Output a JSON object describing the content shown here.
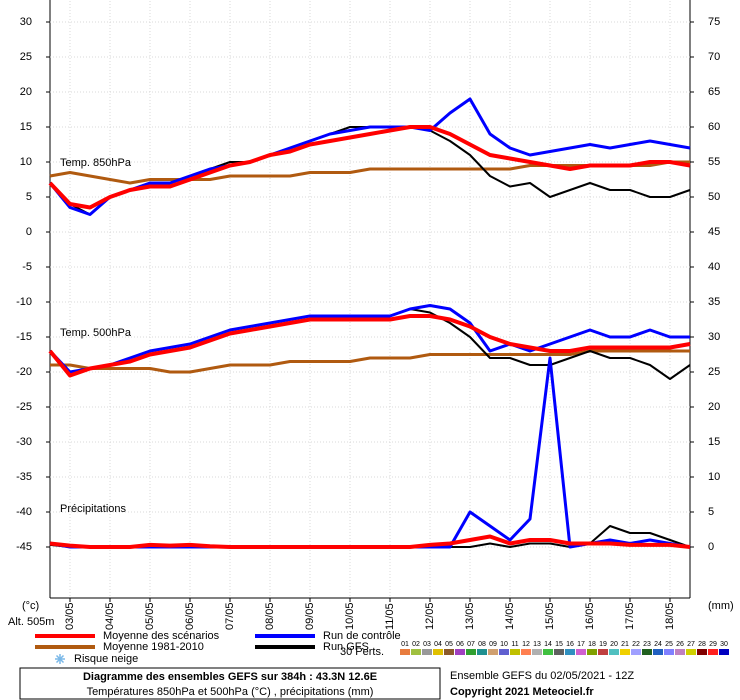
{
  "chart_data": {
    "type": "line",
    "x": [
      0,
      12,
      24,
      36,
      48,
      60,
      72,
      84,
      96,
      108,
      120,
      132,
      144,
      156,
      168,
      180,
      192,
      204,
      216,
      228,
      240,
      252,
      264,
      276,
      288,
      300,
      312,
      324,
      336,
      348,
      360,
      372,
      384
    ],
    "xlim": [
      0,
      384
    ],
    "xticks": [
      {
        "value": 12,
        "label": "03/05"
      },
      {
        "value": 36,
        "label": "04/05"
      },
      {
        "value": 60,
        "label": "05/05"
      },
      {
        "value": 84,
        "label": "06/05"
      },
      {
        "value": 108,
        "label": "07/05"
      },
      {
        "value": 132,
        "label": "08/05"
      },
      {
        "value": 156,
        "label": "09/05"
      },
      {
        "value": 180,
        "label": "10/05"
      },
      {
        "value": 204,
        "label": "11/05"
      },
      {
        "value": 228,
        "label": "12/05"
      },
      {
        "value": 252,
        "label": "13/05"
      },
      {
        "value": 276,
        "label": "14/05"
      },
      {
        "value": 300,
        "label": "15/05"
      },
      {
        "value": 324,
        "label": "16/05"
      },
      {
        "value": 348,
        "label": "17/05"
      },
      {
        "value": 372,
        "label": "18/05"
      }
    ],
    "ylim": [
      -52.5,
      33
    ],
    "yticks": [
      30,
      25,
      20,
      15,
      10,
      5,
      0,
      -5,
      -10,
      -15,
      -20,
      -25,
      -30,
      -35,
      -40,
      -45
    ],
    "y2lim": [
      -7.5,
      78
    ],
    "y2ticks": [
      75,
      70,
      65,
      60,
      55,
      50,
      45,
      40,
      35,
      30,
      25,
      20,
      15,
      10,
      5,
      0
    ],
    "grid": true,
    "y_unit": "(°c)",
    "y2_unit": "(mm)",
    "altitude": "Alt. 505m",
    "panel_labels": [
      "Temp. 850hPa",
      "Temp. 500hPa",
      "Précipitations"
    ],
    "series": [
      {
        "name": "Moyenne des scénarios",
        "color": "#ff0000",
        "temp850": [
          7,
          4,
          3.5,
          5,
          6,
          6.5,
          6.5,
          7.5,
          8.5,
          9.5,
          10,
          11,
          11.5,
          12.5,
          13,
          13.5,
          14,
          14.5,
          15,
          15,
          14,
          12.5,
          11,
          10.5,
          10,
          9.5,
          9,
          9.5,
          9.5,
          9.5,
          10,
          10,
          9.5
        ],
        "temp500": [
          -17,
          -20.5,
          -19.5,
          -19,
          -18.5,
          -17.5,
          -17,
          -16.5,
          -15.5,
          -14.5,
          -14,
          -13.5,
          -13,
          -12.5,
          -12.5,
          -12.5,
          -12.5,
          -12.5,
          -12,
          -12,
          -12.5,
          -13.5,
          -15,
          -16,
          -16.5,
          -17,
          -17,
          -16.5,
          -16.5,
          -16.5,
          -16.5,
          -16.5,
          -16
        ],
        "precip": [
          0.5,
          0.2,
          0,
          0,
          0,
          0.3,
          0.2,
          0.3,
          0.1,
          0,
          0,
          0,
          0,
          0,
          0,
          0,
          0,
          0,
          0,
          0.3,
          0.5,
          1,
          1.5,
          0.5,
          1,
          1,
          0.5,
          0.5,
          0.5,
          0.3,
          0.3,
          0.3,
          0
        ]
      },
      {
        "name": "Moyenne 1981-2010",
        "color": "#b05a10",
        "temp850": [
          8,
          8.5,
          8,
          7.5,
          7,
          7.5,
          7.5,
          7.5,
          7.5,
          8,
          8,
          8,
          8,
          8.5,
          8.5,
          8.5,
          9,
          9,
          9,
          9,
          9,
          9,
          9,
          9,
          9.5,
          9.5,
          9.5,
          9.5,
          9.5,
          9.5,
          9.5,
          10,
          10
        ],
        "temp500": [
          -19,
          -19,
          -19.5,
          -19.5,
          -19.5,
          -19.5,
          -20,
          -20,
          -19.5,
          -19,
          -19,
          -19,
          -18.5,
          -18.5,
          -18.5,
          -18.5,
          -18,
          -18,
          -18,
          -17.5,
          -17.5,
          -17.5,
          -17.5,
          -17.5,
          -17.5,
          -17.5,
          -17.5,
          -17,
          -17,
          -17,
          -17,
          -17,
          -17
        ]
      },
      {
        "name": "Run de contrôle",
        "color": "#0000ff",
        "temp850": [
          7,
          3.5,
          2.5,
          5,
          6,
          7,
          7,
          8,
          9,
          9.5,
          10,
          11,
          12,
          13,
          14,
          14.5,
          15,
          15,
          15,
          14.5,
          17,
          19,
          14,
          12,
          11,
          11.5,
          12,
          12.5,
          12,
          12.5,
          13,
          12.5,
          12
        ],
        "temp500": [
          -17,
          -20,
          -19.5,
          -19,
          -18,
          -17,
          -16.5,
          -16,
          -15,
          -14,
          -13.5,
          -13,
          -12.5,
          -12,
          -12,
          -12,
          -12,
          -12,
          -11,
          -10.5,
          -11,
          -13,
          -17,
          -16,
          -17,
          -16,
          -15,
          -14,
          -15,
          -15,
          -14,
          -15,
          -15
        ],
        "precip": [
          0.5,
          0,
          0,
          0,
          0,
          0,
          0,
          0,
          0,
          0,
          0,
          0,
          0,
          0,
          0,
          0,
          0,
          0,
          0,
          0,
          0,
          5,
          3,
          1,
          4,
          27,
          0,
          0.5,
          1,
          0.5,
          1,
          0.5,
          0
        ]
      },
      {
        "name": "Run GFS",
        "color": "#000000",
        "temp850": [
          7,
          4,
          2.5,
          5,
          6,
          7,
          6.5,
          7.5,
          9,
          10,
          10,
          11,
          12,
          13,
          14,
          15,
          15,
          15,
          15,
          14.5,
          13,
          11,
          8,
          6.5,
          7,
          5,
          6,
          7,
          6,
          6,
          5,
          5,
          6
        ],
        "temp500": [
          -17,
          -20,
          -19.5,
          -19,
          -18,
          -17,
          -16.5,
          -16,
          -15,
          -14,
          -13.5,
          -13,
          -12.5,
          -12,
          -12,
          -12,
          -12,
          -12,
          -11,
          -11.5,
          -13,
          -15,
          -18,
          -18,
          -19,
          -19,
          -18,
          -17,
          -18,
          -18,
          -19,
          -21,
          -19
        ],
        "precip": [
          0.3,
          0,
          0,
          0,
          0,
          0,
          0,
          0,
          0,
          0,
          0,
          0,
          0,
          0,
          0,
          0,
          0,
          0,
          0,
          0,
          0,
          0,
          0.5,
          0,
          0.5,
          0.5,
          0,
          0.5,
          3,
          2,
          2,
          1,
          0
        ]
      }
    ],
    "snow_legend": "Risque neige",
    "perturbations": {
      "title": "30 Perts.",
      "labels": [
        "01",
        "02",
        "03",
        "04",
        "05",
        "06",
        "07",
        "08",
        "09",
        "10",
        "11",
        "12",
        "13",
        "14",
        "15",
        "16",
        "17",
        "18",
        "19",
        "20",
        "21",
        "22",
        "23",
        "24",
        "25",
        "26",
        "27",
        "28",
        "29",
        "30"
      ],
      "colors": [
        "#e87c3e",
        "#a0c040",
        "#999999",
        "#e0c000",
        "#8b5a2b",
        "#a040c0",
        "#30a030",
        "#209090",
        "#d0a070",
        "#6060d0",
        "#c0c000",
        "#ff7f50",
        "#b0b0b0",
        "#40c040",
        "#606060",
        "#3090c0",
        "#d060d0",
        "#80a000",
        "#c04040",
        "#50c0c0",
        "#f0d000",
        "#a0a0ff",
        "#206020",
        "#2060c0",
        "#8080ff",
        "#c080c0",
        "#d0d000",
        "#800000",
        "#ff2020",
        "#0000c0"
      ]
    },
    "footer": {
      "title": "Diagramme des ensembles GEFS sur 384h : 43.3N 12.6E",
      "subtitle": "Températures 850hPa et 500hPa (°C) , précipitations (mm)",
      "run": "Ensemble GEFS du 02/05/2021 - 12Z",
      "copyright": "Copyright 2021 Meteociel.fr"
    }
  }
}
